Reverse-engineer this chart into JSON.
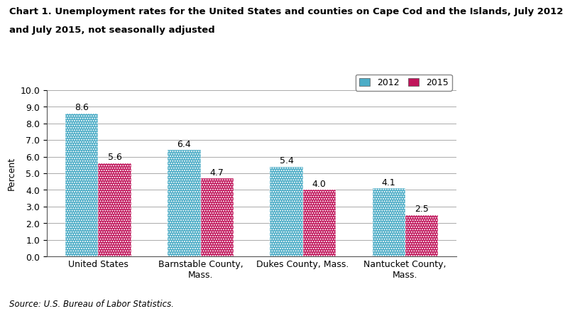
{
  "title_line1": "Chart 1. Unemployment rates for the United States and counties on Cape Cod and the Islands, July 2012",
  "title_line2": "and July 2015, not seasonally adjusted",
  "categories": [
    "United States",
    "Barnstable County,\nMass.",
    "Dukes County, Mass.",
    "Nantucket County,\nMass."
  ],
  "values_2012": [
    8.6,
    6.4,
    5.4,
    4.1
  ],
  "values_2015": [
    5.6,
    4.7,
    4.0,
    2.5
  ],
  "color_2012": "#4BACC6",
  "color_2015": "#C0145A",
  "hatch_2012": ".....",
  "hatch_2015": ".....",
  "ylabel": "Percent",
  "ylim": [
    0,
    10.0
  ],
  "yticks": [
    0.0,
    1.0,
    2.0,
    3.0,
    4.0,
    5.0,
    6.0,
    7.0,
    8.0,
    9.0,
    10.0
  ],
  "legend_2012": "2012",
  "legend_2015": "2015",
  "source": "Source: U.S. Bureau of Labor Statistics.",
  "bar_width": 0.32,
  "title_fontsize": 9.5,
  "label_fontsize": 9,
  "tick_fontsize": 9,
  "source_fontsize": 8.5,
  "value_label_fontsize": 9
}
